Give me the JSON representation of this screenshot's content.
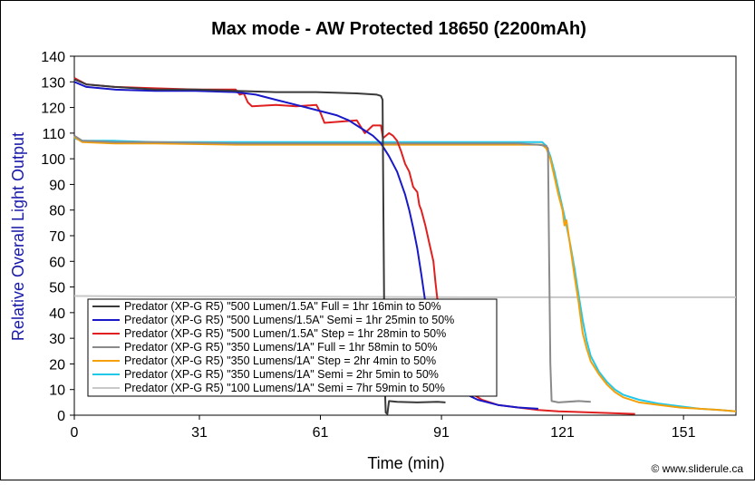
{
  "chart_data": {
    "type": "line",
    "title": "Max mode - AW Protected 18650 (2200mAh)",
    "xlabel": "Time (min)",
    "ylabel": "Relative Overall Light Output",
    "xlim": [
      0,
      164
    ],
    "ylim": [
      0,
      140
    ],
    "x_ticks": [
      0,
      31,
      61,
      91,
      121,
      151
    ],
    "y_ticks": [
      0,
      10,
      20,
      30,
      40,
      50,
      60,
      70,
      80,
      90,
      100,
      110,
      120,
      130,
      140
    ],
    "grid": false,
    "legend_position": "center-left",
    "credit": "© www.sliderule.ca",
    "colors": {
      "plot_background": "#ffffff",
      "ylabel": "#1a1aa8",
      "axis": "#000000"
    },
    "series": [
      {
        "name": "Predator (XP-G R5) \"500 Lumen/1.5A\" Full = 1hr 16min to 50%",
        "color": "#3a3a3a",
        "points": [
          [
            0,
            131
          ],
          [
            3,
            129
          ],
          [
            10,
            128
          ],
          [
            20,
            127
          ],
          [
            30,
            127
          ],
          [
            40,
            126.5
          ],
          [
            50,
            126
          ],
          [
            60,
            126
          ],
          [
            70,
            125.5
          ],
          [
            75,
            125
          ],
          [
            76,
            124.5
          ],
          [
            76.4,
            123
          ],
          [
            76.6,
            80
          ],
          [
            76.8,
            40
          ],
          [
            77,
            10
          ],
          [
            77.2,
            1
          ],
          [
            77.6,
            0.5
          ],
          [
            78,
            5.5
          ],
          [
            80,
            5.2
          ],
          [
            85,
            5
          ],
          [
            90,
            5.2
          ],
          [
            92,
            5
          ]
        ]
      },
      {
        "name": "Predator (XP-G R5) \"500 Lumens/1.5A\" Semi = 1hr 25min to 50%",
        "color": "#1818c8",
        "points": [
          [
            0,
            130
          ],
          [
            3,
            128
          ],
          [
            10,
            127
          ],
          [
            20,
            126.5
          ],
          [
            30,
            126.5
          ],
          [
            40,
            126
          ],
          [
            45,
            125
          ],
          [
            50,
            123
          ],
          [
            55,
            121
          ],
          [
            60,
            119
          ],
          [
            65,
            117
          ],
          [
            68,
            115
          ],
          [
            70,
            113
          ],
          [
            72,
            111
          ],
          [
            74,
            109
          ],
          [
            76,
            106
          ],
          [
            78,
            101
          ],
          [
            80,
            95
          ],
          [
            82,
            86
          ],
          [
            83,
            80
          ],
          [
            84,
            73
          ],
          [
            85,
            65
          ],
          [
            86,
            55
          ],
          [
            87,
            44
          ],
          [
            87.5,
            38
          ],
          [
            88,
            30
          ],
          [
            88.5,
            24
          ],
          [
            89,
            19
          ],
          [
            90,
            16
          ],
          [
            91,
            14
          ],
          [
            93,
            11
          ],
          [
            96,
            9
          ],
          [
            100,
            6
          ],
          [
            105,
            4
          ],
          [
            110,
            3
          ],
          [
            115,
            2.5
          ]
        ]
      },
      {
        "name": "Predator (XP-G R5) \"500 Lumen/1.5A\" Step = 1hr 28min to 50%",
        "color": "#e02020",
        "points": [
          [
            0,
            131.5
          ],
          [
            3,
            129
          ],
          [
            10,
            128
          ],
          [
            20,
            127.5
          ],
          [
            30,
            127
          ],
          [
            40,
            127
          ],
          [
            41,
            125
          ],
          [
            42,
            125.5
          ],
          [
            43,
            122
          ],
          [
            44,
            120.5
          ],
          [
            50,
            121
          ],
          [
            55,
            120.5
          ],
          [
            60,
            121
          ],
          [
            61,
            118
          ],
          [
            62,
            114
          ],
          [
            66,
            114.5
          ],
          [
            70,
            115
          ],
          [
            72,
            110
          ],
          [
            74,
            113
          ],
          [
            76,
            113
          ],
          [
            76.5,
            108
          ],
          [
            78,
            110
          ],
          [
            79,
            109
          ],
          [
            80,
            107
          ],
          [
            81,
            103
          ],
          [
            82,
            98
          ],
          [
            83,
            95
          ],
          [
            84,
            89
          ],
          [
            85,
            87
          ],
          [
            85.5,
            82
          ],
          [
            86,
            80
          ],
          [
            87,
            74
          ],
          [
            88,
            67
          ],
          [
            89,
            60
          ],
          [
            89.5,
            52
          ],
          [
            90,
            45
          ],
          [
            90.5,
            38
          ],
          [
            91,
            30
          ],
          [
            92,
            22
          ],
          [
            93,
            17
          ],
          [
            95,
            13
          ],
          [
            98,
            9
          ],
          [
            101,
            6
          ],
          [
            105,
            4
          ],
          [
            110,
            3
          ],
          [
            115,
            2
          ],
          [
            120,
            1.5
          ],
          [
            130,
            1
          ],
          [
            139,
            0.5
          ]
        ]
      },
      {
        "name": "Predator (XP-G R5) \"350 Lumens/1A\" Full = 1hr 58min to 50%",
        "color": "#8a8a8a",
        "points": [
          [
            0,
            109
          ],
          [
            2,
            107
          ],
          [
            10,
            106.5
          ],
          [
            20,
            106.5
          ],
          [
            40,
            106
          ],
          [
            60,
            106
          ],
          [
            80,
            106
          ],
          [
            100,
            106
          ],
          [
            110,
            106
          ],
          [
            115,
            105.5
          ],
          [
            117,
            105
          ],
          [
            117.4,
            104
          ],
          [
            117.7,
            60
          ],
          [
            118,
            20
          ],
          [
            118.3,
            5.5
          ],
          [
            120,
            5
          ],
          [
            125,
            5.5
          ],
          [
            128,
            5.2
          ]
        ]
      },
      {
        "name": "Predator (XP-G R5) \"350 Lumens/1A\" Step = 2hr 4min to 50%",
        "color": "#f5a00a",
        "points": [
          [
            0,
            108.5
          ],
          [
            2,
            106.5
          ],
          [
            10,
            106
          ],
          [
            20,
            106
          ],
          [
            40,
            105.5
          ],
          [
            60,
            105.5
          ],
          [
            80,
            105.5
          ],
          [
            100,
            105.5
          ],
          [
            110,
            105.5
          ],
          [
            116,
            105.5
          ],
          [
            117,
            104
          ],
          [
            118,
            100
          ],
          [
            119,
            93
          ],
          [
            120,
            86
          ],
          [
            121,
            80
          ],
          [
            121.5,
            74
          ],
          [
            122,
            76
          ],
          [
            123,
            65
          ],
          [
            124,
            54
          ],
          [
            125,
            44
          ],
          [
            125.5,
            38
          ],
          [
            126,
            32
          ],
          [
            127,
            26
          ],
          [
            128,
            21
          ],
          [
            130,
            16
          ],
          [
            132,
            12
          ],
          [
            134,
            9
          ],
          [
            136,
            7
          ],
          [
            140,
            5
          ],
          [
            145,
            4
          ],
          [
            150,
            3
          ],
          [
            155,
            2.5
          ],
          [
            160,
            2
          ],
          [
            164,
            1.5
          ]
        ]
      },
      {
        "name": "Predator (XP-G R5) \"350 Lumens/1A\" Semi = 2hr 5min to 50%",
        "color": "#22c8e8",
        "points": [
          [
            0,
            108
          ],
          [
            2,
            107
          ],
          [
            10,
            107
          ],
          [
            20,
            106.5
          ],
          [
            40,
            106.5
          ],
          [
            60,
            106.5
          ],
          [
            80,
            106.5
          ],
          [
            100,
            106.5
          ],
          [
            110,
            106.5
          ],
          [
            116,
            106.5
          ],
          [
            117,
            105
          ],
          [
            118,
            101
          ],
          [
            119,
            95
          ],
          [
            120,
            88
          ],
          [
            121,
            81
          ],
          [
            122,
            74
          ],
          [
            123,
            66
          ],
          [
            124,
            57
          ],
          [
            125,
            47
          ],
          [
            126,
            37
          ],
          [
            127,
            29
          ],
          [
            128,
            23
          ],
          [
            130,
            17
          ],
          [
            132,
            13
          ],
          [
            134,
            10
          ],
          [
            136,
            8
          ],
          [
            140,
            6
          ],
          [
            145,
            4.5
          ],
          [
            150,
            3.5
          ],
          [
            155,
            2.5
          ],
          [
            160,
            2
          ],
          [
            164,
            1.5
          ]
        ]
      },
      {
        "name": "Predator (XP-G R5) \"100 Lumens/1A\" Semi = 7hr 59min to 50%",
        "color": "#c8c8c8",
        "points": [
          [
            0,
            46.5
          ],
          [
            20,
            46.3
          ],
          [
            60,
            46.2
          ],
          [
            100,
            46
          ],
          [
            140,
            46
          ],
          [
            164,
            46
          ]
        ]
      }
    ]
  }
}
